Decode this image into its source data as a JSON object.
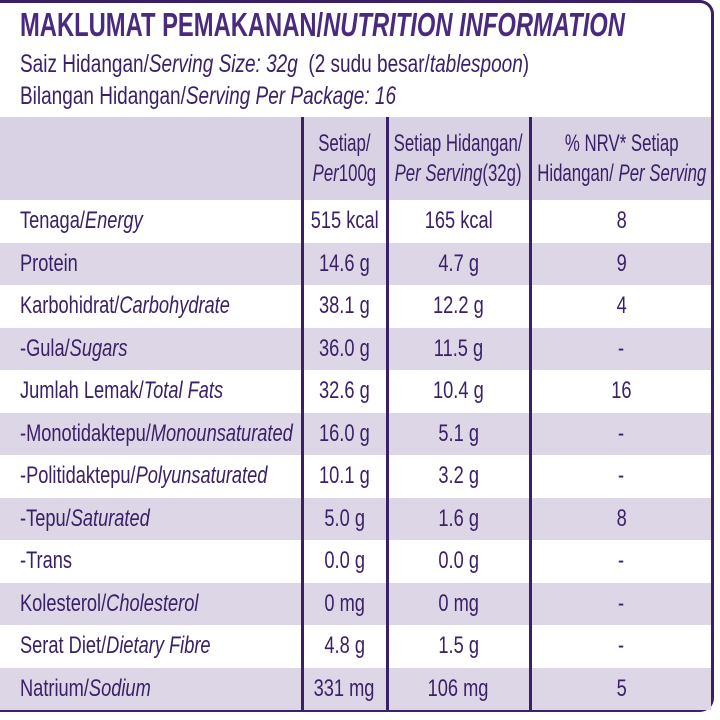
{
  "title": {
    "malay": "MAKLUMAT PEMAKANAN/",
    "english": "NUTRITION INFORMATION"
  },
  "serving_size": {
    "malay": "Saiz Hidangan/",
    "english": "Serving Size: 32g",
    "extra_malay": "(2 sudu besar/",
    "extra_english": "tablespoon",
    ")": ")"
  },
  "servings_per_package": {
    "malay": "Bilangan Hidangan/",
    "english": "Serving Per Package: 16"
  },
  "columns": [
    {
      "line1": "Setiap/",
      "line2_italic": "Per",
      "line2": "100g"
    },
    {
      "line1": "Setiap Hidangan/",
      "line2_italic": "Per Serving",
      "line2": "(32g)"
    },
    {
      "line1": "% NRV* Setiap",
      "line2": "Hidangan/",
      "line2_italic": "Per Serving"
    }
  ],
  "rows": [
    {
      "malay": "Tenaga/",
      "english": "Energy",
      "per100": "515 kcal",
      "serving": "165 kcal",
      "nrv": "8"
    },
    {
      "malay": "Protein",
      "english": "",
      "per100": "14.6 g",
      "serving": "4.7 g",
      "nrv": "9"
    },
    {
      "malay": "Karbohidrat/",
      "english": "Carbohydrate",
      "per100": "38.1 g",
      "serving": "12.2 g",
      "nrv": "4"
    },
    {
      "malay": "-Gula/",
      "english": "Sugars",
      "per100": "36.0 g",
      "serving": "11.5 g",
      "nrv": "-"
    },
    {
      "malay": "Jumlah Lemak/",
      "english": "Total Fats",
      "per100": "32.6 g",
      "serving": "10.4 g",
      "nrv": "16"
    },
    {
      "malay": "-Monotidaktepu/",
      "english": "Monounsaturated",
      "per100": "16.0 g",
      "serving": "5.1 g",
      "nrv": "-"
    },
    {
      "malay": "-Politidaktepu/",
      "english": "Polyunsaturated",
      "per100": "10.1 g",
      "serving": "3.2 g",
      "nrv": "-"
    },
    {
      "malay": "-Tepu/",
      "english": "Saturated",
      "per100": "5.0 g",
      "serving": "1.6 g",
      "nrv": "8"
    },
    {
      "malay": "-Trans",
      "english": "",
      "per100": "0.0 g",
      "serving": "0.0 g",
      "nrv": "-"
    },
    {
      "malay": "Kolesterol/",
      "english": "Cholesterol",
      "per100": "0 mg",
      "serving": "0 mg",
      "nrv": "-"
    },
    {
      "malay": "Serat Diet/",
      "english": "Dietary Fibre",
      "per100": "4.8 g",
      "serving": "1.5 g",
      "nrv": "-"
    },
    {
      "malay": "Natrium/",
      "english": "Sodium",
      "per100": "331 mg",
      "serving": "106 mg",
      "nrv": "5"
    }
  ],
  "colors": {
    "text": "#3a2066",
    "header_band": "#d9d1e4",
    "row_shade": "#ddd6e7"
  }
}
